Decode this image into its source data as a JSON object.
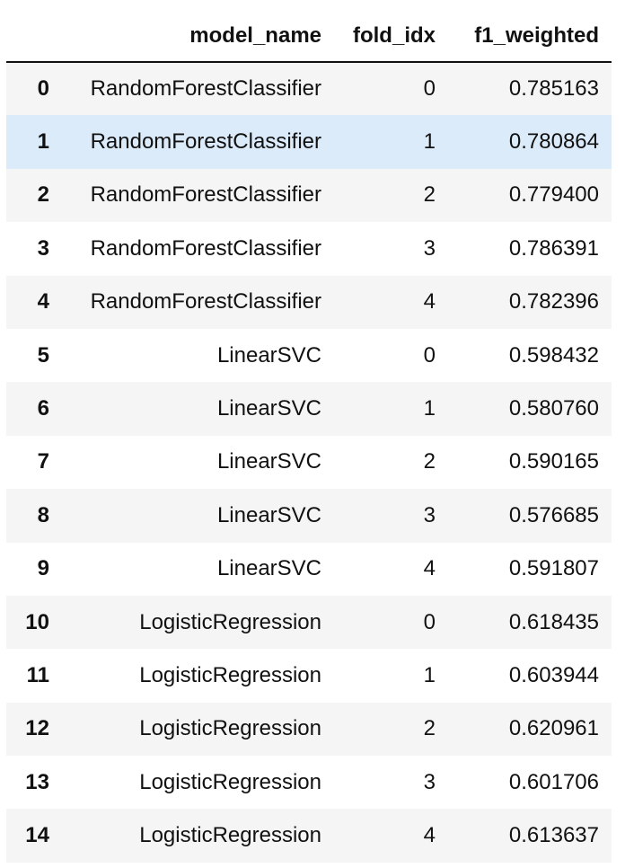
{
  "table": {
    "columns": [
      "",
      "model_name",
      "fold_idx",
      "f1_weighted"
    ],
    "rows": [
      {
        "index": "0",
        "model_name": "RandomForestClassifier",
        "fold_idx": "0",
        "f1_weighted": "0.785163"
      },
      {
        "index": "1",
        "model_name": "RandomForestClassifier",
        "fold_idx": "1",
        "f1_weighted": "0.780864"
      },
      {
        "index": "2",
        "model_name": "RandomForestClassifier",
        "fold_idx": "2",
        "f1_weighted": "0.779400"
      },
      {
        "index": "3",
        "model_name": "RandomForestClassifier",
        "fold_idx": "3",
        "f1_weighted": "0.786391"
      },
      {
        "index": "4",
        "model_name": "RandomForestClassifier",
        "fold_idx": "4",
        "f1_weighted": "0.782396"
      },
      {
        "index": "5",
        "model_name": "LinearSVC",
        "fold_idx": "0",
        "f1_weighted": "0.598432"
      },
      {
        "index": "6",
        "model_name": "LinearSVC",
        "fold_idx": "1",
        "f1_weighted": "0.580760"
      },
      {
        "index": "7",
        "model_name": "LinearSVC",
        "fold_idx": "2",
        "f1_weighted": "0.590165"
      },
      {
        "index": "8",
        "model_name": "LinearSVC",
        "fold_idx": "3",
        "f1_weighted": "0.576685"
      },
      {
        "index": "9",
        "model_name": "LinearSVC",
        "fold_idx": "4",
        "f1_weighted": "0.591807"
      },
      {
        "index": "10",
        "model_name": "LogisticRegression",
        "fold_idx": "0",
        "f1_weighted": "0.618435"
      },
      {
        "index": "11",
        "model_name": "LogisticRegression",
        "fold_idx": "1",
        "f1_weighted": "0.603944"
      },
      {
        "index": "12",
        "model_name": "LogisticRegression",
        "fold_idx": "2",
        "f1_weighted": "0.620961"
      },
      {
        "index": "13",
        "model_name": "LogisticRegression",
        "fold_idx": "3",
        "f1_weighted": "0.601706"
      },
      {
        "index": "14",
        "model_name": "LogisticRegression",
        "fold_idx": "4",
        "f1_weighted": "0.613637"
      }
    ],
    "highlighted_row": 1
  },
  "colors": {
    "stripe": "#f5f5f5",
    "hover": "#dcebf9",
    "header_rule": "#111111"
  }
}
